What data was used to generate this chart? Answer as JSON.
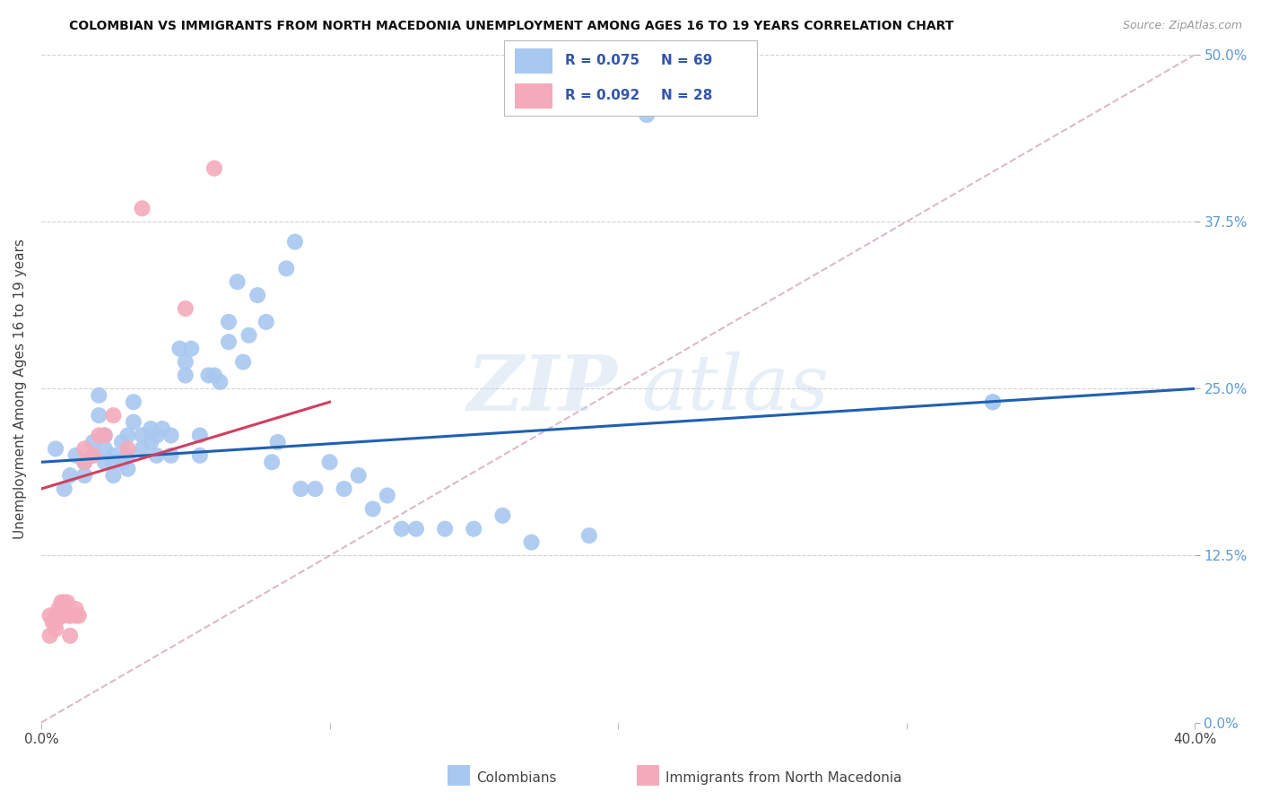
{
  "title": "COLOMBIAN VS IMMIGRANTS FROM NORTH MACEDONIA UNEMPLOYMENT AMONG AGES 16 TO 19 YEARS CORRELATION CHART",
  "source": "Source: ZipAtlas.com",
  "ylabel": "Unemployment Among Ages 16 to 19 years",
  "xlim": [
    0.0,
    0.4
  ],
  "ylim": [
    0.0,
    0.5
  ],
  "xtick_positions": [
    0.0,
    0.1,
    0.2,
    0.3,
    0.4
  ],
  "xtick_labels": [
    "0.0%",
    "",
    "",
    "",
    "40.0%"
  ],
  "ytick_positions": [
    0.0,
    0.125,
    0.25,
    0.375,
    0.5
  ],
  "ytick_labels_right": [
    "0.0%",
    "12.5%",
    "25.0%",
    "37.5%",
    "50.0%"
  ],
  "colombians_label": "Colombians",
  "macedonia_label": "Immigrants from North Macedonia",
  "blue_color": "#A8C8F0",
  "pink_color": "#F4AABB",
  "blue_line_color": "#2060B0",
  "pink_line_color": "#D04060",
  "ref_line_color": "#D4A8C0",
  "background_color": "#FFFFFF",
  "grid_color": "#CCCCCC",
  "blue_r": "0.075",
  "blue_n": "69",
  "pink_r": "0.092",
  "pink_n": "28",
  "blue_line_x0": 0.0,
  "blue_line_y0": 0.195,
  "blue_line_x1": 0.4,
  "blue_line_y1": 0.25,
  "pink_line_x0": 0.0,
  "pink_line_y0": 0.175,
  "pink_line_x1": 0.1,
  "pink_line_y1": 0.24,
  "blue_scatter_x": [
    0.005,
    0.008,
    0.01,
    0.012,
    0.015,
    0.015,
    0.018,
    0.018,
    0.02,
    0.02,
    0.022,
    0.022,
    0.022,
    0.025,
    0.025,
    0.025,
    0.028,
    0.028,
    0.03,
    0.03,
    0.03,
    0.032,
    0.032,
    0.035,
    0.035,
    0.038,
    0.038,
    0.04,
    0.04,
    0.042,
    0.045,
    0.045,
    0.048,
    0.05,
    0.05,
    0.052,
    0.055,
    0.055,
    0.058,
    0.06,
    0.062,
    0.065,
    0.065,
    0.068,
    0.07,
    0.072,
    0.075,
    0.078,
    0.08,
    0.082,
    0.085,
    0.088,
    0.09,
    0.095,
    0.1,
    0.105,
    0.11,
    0.115,
    0.12,
    0.125,
    0.13,
    0.14,
    0.15,
    0.16,
    0.17,
    0.19,
    0.21,
    0.33,
    0.33
  ],
  "blue_scatter_y": [
    0.205,
    0.175,
    0.185,
    0.2,
    0.195,
    0.185,
    0.21,
    0.2,
    0.245,
    0.23,
    0.215,
    0.205,
    0.195,
    0.2,
    0.195,
    0.185,
    0.21,
    0.195,
    0.215,
    0.2,
    0.19,
    0.24,
    0.225,
    0.215,
    0.205,
    0.22,
    0.21,
    0.215,
    0.2,
    0.22,
    0.215,
    0.2,
    0.28,
    0.27,
    0.26,
    0.28,
    0.215,
    0.2,
    0.26,
    0.26,
    0.255,
    0.3,
    0.285,
    0.33,
    0.27,
    0.29,
    0.32,
    0.3,
    0.195,
    0.21,
    0.34,
    0.36,
    0.175,
    0.175,
    0.195,
    0.175,
    0.185,
    0.16,
    0.17,
    0.145,
    0.145,
    0.145,
    0.145,
    0.155,
    0.135,
    0.14,
    0.455,
    0.24,
    0.24
  ],
  "pink_scatter_x": [
    0.003,
    0.003,
    0.004,
    0.005,
    0.005,
    0.005,
    0.006,
    0.007,
    0.007,
    0.008,
    0.008,
    0.009,
    0.01,
    0.01,
    0.01,
    0.012,
    0.012,
    0.013,
    0.015,
    0.015,
    0.018,
    0.02,
    0.022,
    0.025,
    0.03,
    0.035,
    0.05,
    0.06
  ],
  "pink_scatter_y": [
    0.08,
    0.065,
    0.075,
    0.075,
    0.08,
    0.07,
    0.085,
    0.09,
    0.08,
    0.09,
    0.08,
    0.09,
    0.08,
    0.065,
    0.08,
    0.085,
    0.08,
    0.08,
    0.205,
    0.195,
    0.2,
    0.215,
    0.215,
    0.23,
    0.205,
    0.385,
    0.31,
    0.415
  ]
}
